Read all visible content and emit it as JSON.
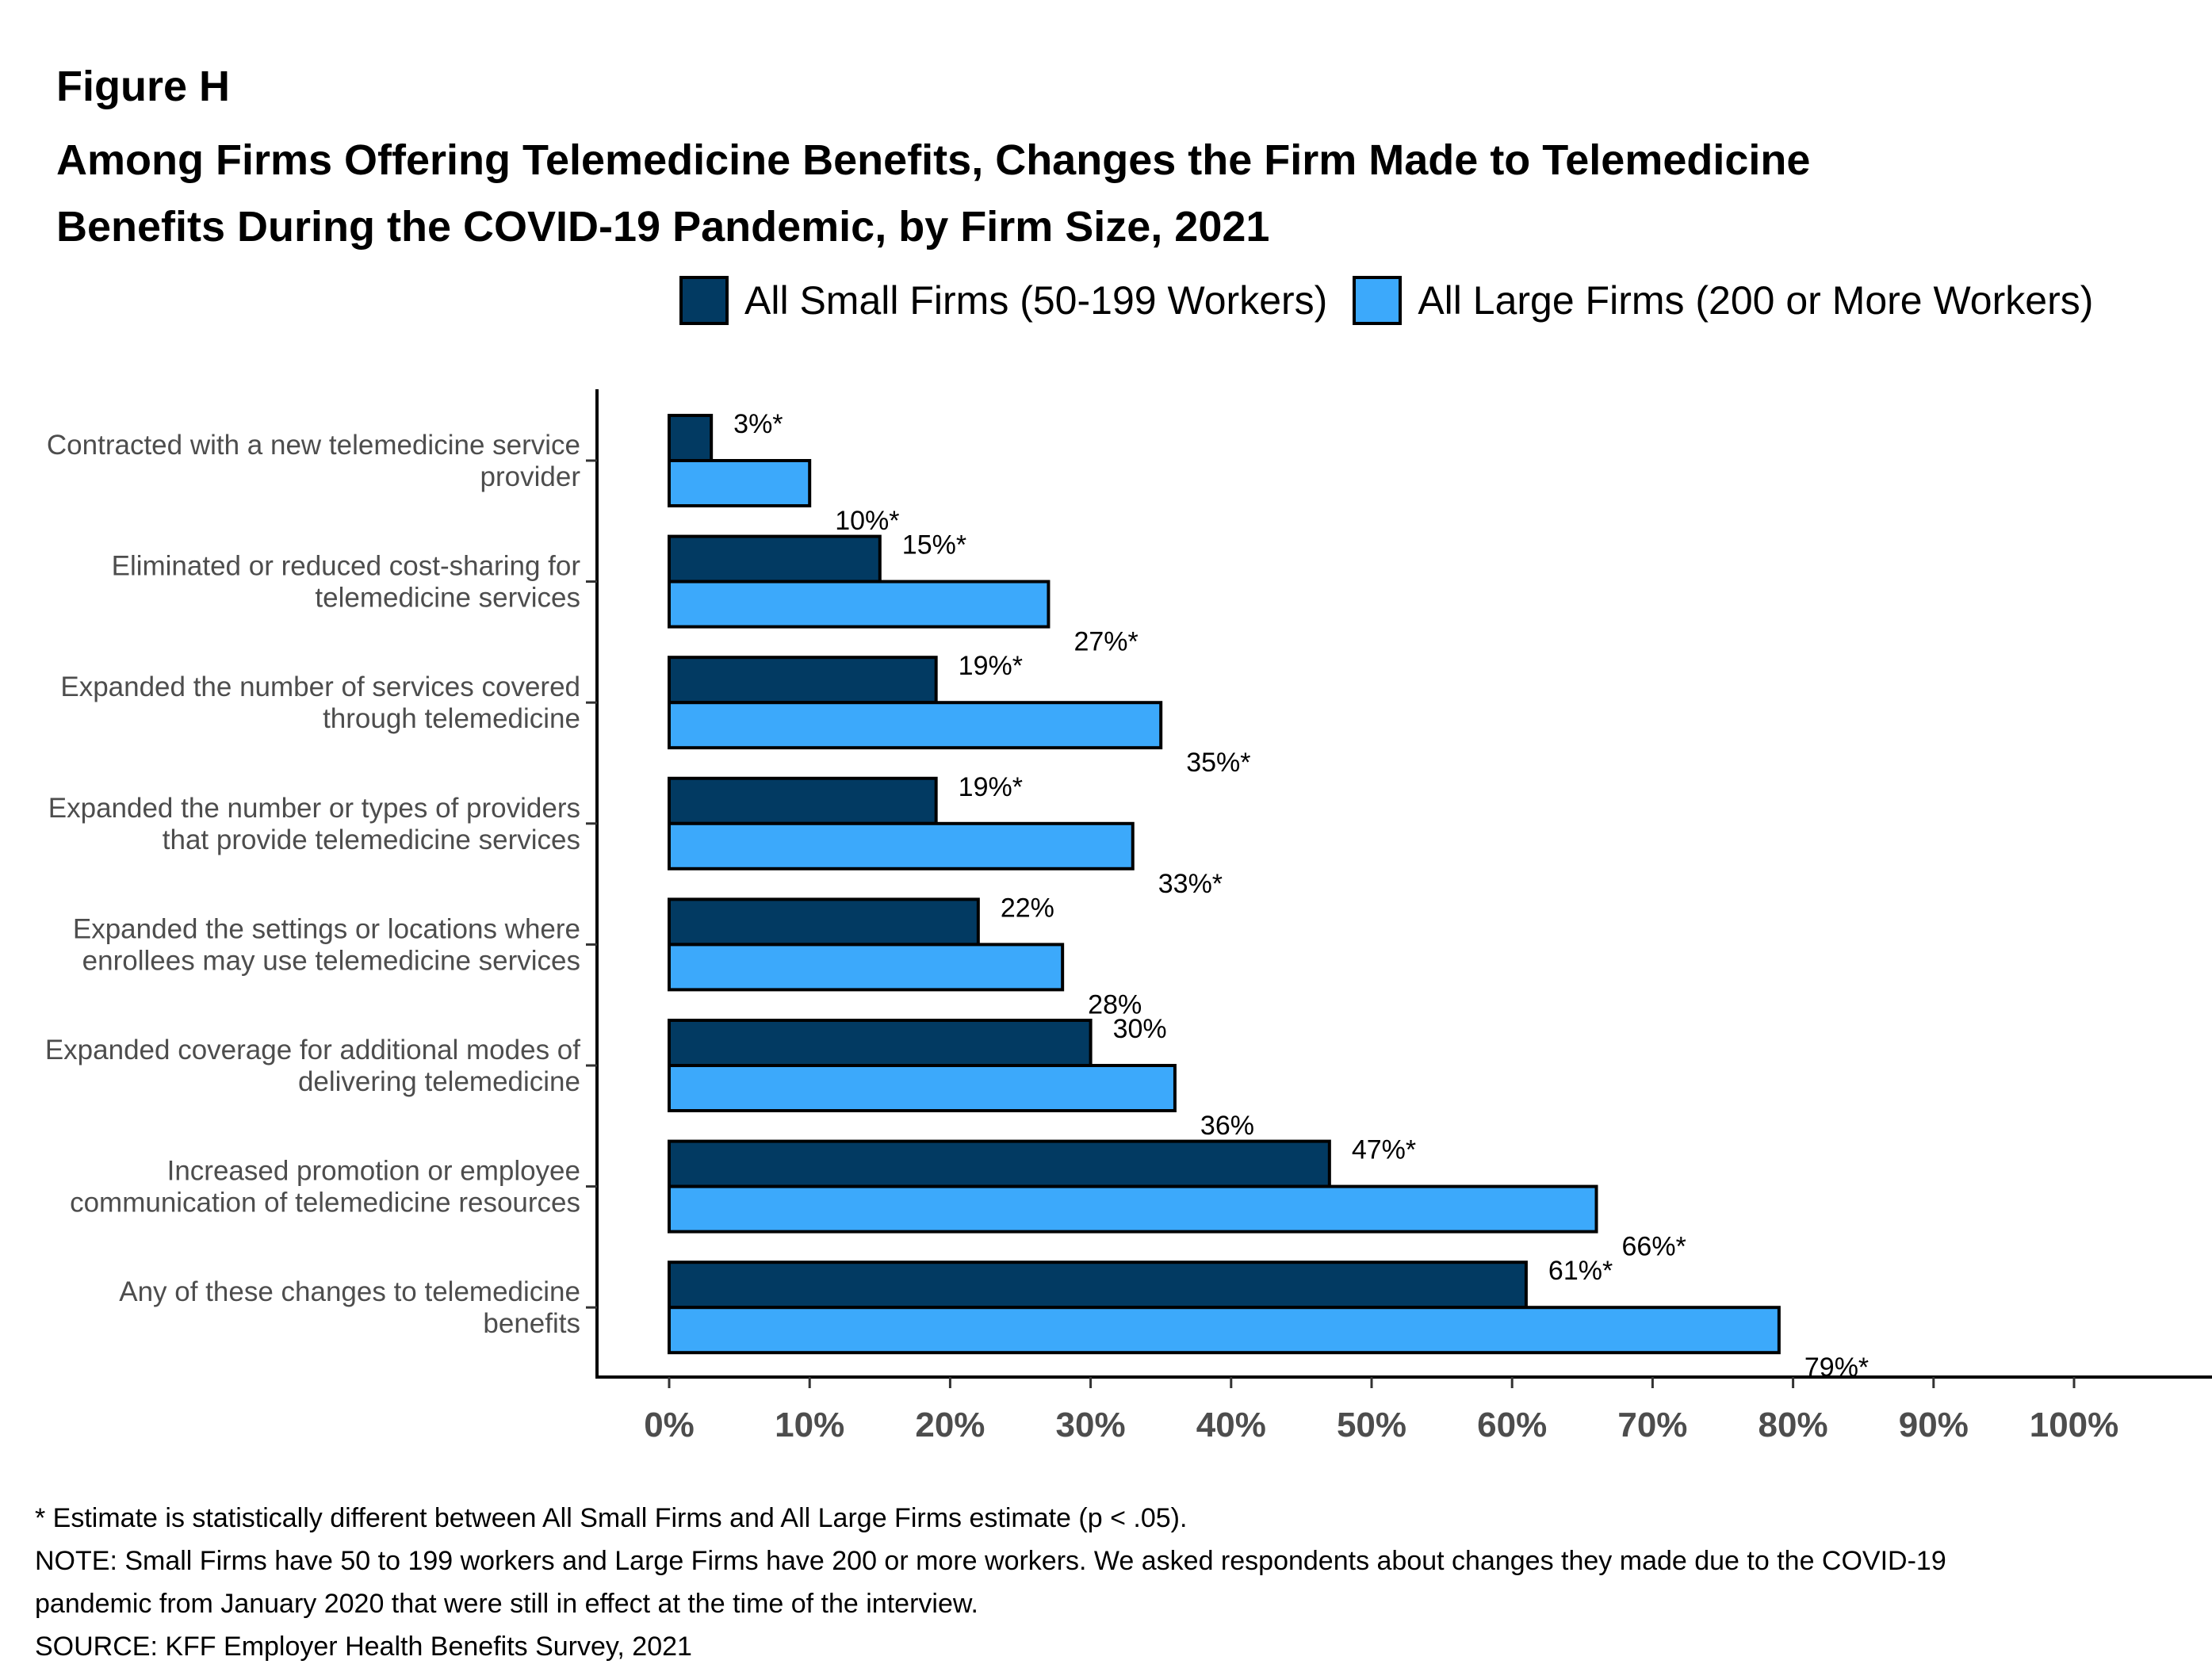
{
  "figure_label": "Figure H",
  "title_lines": [
    "Among Firms Offering Telemedicine Benefits, Changes the Firm Made to Telemedicine",
    "Benefits During the COVID-19 Pandemic, by Firm Size, 2021"
  ],
  "colors": {
    "small": "#023a62",
    "large": "#3ca9fb",
    "axis": "#000000",
    "label": "#4d4d4d"
  },
  "chart_data": {
    "type": "bar",
    "orientation": "horizontal",
    "title": "Among Firms Offering Telemedicine Benefits, Changes the Firm Made to Telemedicine Benefits During the COVID-19 Pandemic, by Firm Size, 2021",
    "xlabel": "",
    "ylabel": "",
    "xlim": [
      0,
      100
    ],
    "grid": false,
    "legend_position": "top-right",
    "x_ticks": [
      "0%",
      "10%",
      "20%",
      "30%",
      "40%",
      "50%",
      "60%",
      "70%",
      "80%",
      "90%",
      "100%"
    ],
    "categories": [
      [
        "Contracted with a new telemedicine service",
        "provider"
      ],
      [
        "Eliminated or reduced cost-sharing for",
        "telemedicine services"
      ],
      [
        "Expanded the number of services covered",
        "through telemedicine"
      ],
      [
        "Expanded the number or types of providers",
        "that provide telemedicine services"
      ],
      [
        "Expanded the settings or locations where",
        "enrollees may use telemedicine services"
      ],
      [
        "Expanded coverage for additional modes of",
        "delivering telemedicine"
      ],
      [
        "Increased promotion or employee",
        "communication of telemedicine resources"
      ],
      [
        "Any of these changes to telemedicine",
        "benefits"
      ]
    ],
    "series": [
      {
        "name": "All Small Firms (50-199 Workers)",
        "values": [
          3,
          15,
          19,
          19,
          22,
          30,
          47,
          61
        ],
        "labels": [
          "3%*",
          "15%*",
          "19%*",
          "19%*",
          "22%",
          "30%",
          "47%*",
          "61%*"
        ]
      },
      {
        "name": "All Large Firms (200 or More Workers)",
        "values": [
          10,
          27,
          35,
          33,
          28,
          36,
          66,
          79
        ],
        "labels": [
          "10%*",
          "27%*",
          "35%*",
          "33%*",
          "28%",
          "36%",
          "66%*",
          "79%*"
        ]
      }
    ]
  },
  "notes": [
    "* Estimate is statistically different between All Small Firms and All Large Firms estimate (p < .05).",
    "NOTE: Small Firms have 50 to 199 workers and Large Firms have 200 or more workers.  We asked respondents about changes they made due to the COVID-19",
    "pandemic from January 2020 that were still in effect at the time of the interview.",
    "SOURCE: KFF Employer Health Benefits Survey, 2021"
  ]
}
